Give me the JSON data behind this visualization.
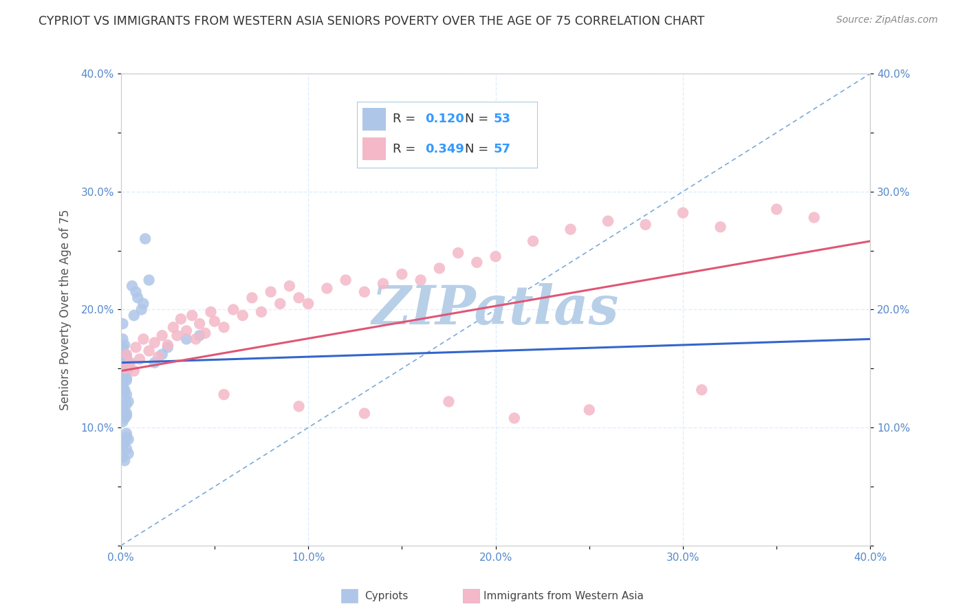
{
  "title": "CYPRIOT VS IMMIGRANTS FROM WESTERN ASIA SENIORS POVERTY OVER THE AGE OF 75 CORRELATION CHART",
  "source": "Source: ZipAtlas.com",
  "ylabel": "Seniors Poverty Over the Age of 75",
  "xlim": [
    0.0,
    0.4
  ],
  "ylim": [
    0.0,
    0.4
  ],
  "xticks": [
    0.0,
    0.05,
    0.1,
    0.15,
    0.2,
    0.25,
    0.3,
    0.35,
    0.4
  ],
  "yticks": [
    0.0,
    0.05,
    0.1,
    0.15,
    0.2,
    0.25,
    0.3,
    0.35,
    0.4
  ],
  "xticklabels": [
    "0.0%",
    "",
    "10.0%",
    "",
    "20.0%",
    "",
    "30.0%",
    "",
    "40.0%"
  ],
  "yticklabels": [
    "",
    "",
    "10.0%",
    "",
    "20.0%",
    "",
    "30.0%",
    "",
    "40.0%"
  ],
  "legend_r1_val": "0.120",
  "legend_n1_val": "53",
  "legend_r2_val": "0.349",
  "legend_n2_val": "57",
  "cypriot_color": "#aec6e8",
  "immigrant_color": "#f4b8c8",
  "line_cypriot_color": "#3366cc",
  "line_immigrant_color": "#e05575",
  "line_diagonal_color": "#7aaad8",
  "watermark_color": "#b8cfe8",
  "background_color": "#ffffff",
  "grid_color": "#ddeeff",
  "tick_color": "#5588cc",
  "legend_text_color": "#333333",
  "legend_val_color": "#3366cc",
  "legend_val2_color": "#e05575",
  "title_color": "#333333",
  "source_color": "#888888",
  "cypriot_x": [
    0.002,
    0.003,
    0.001,
    0.002,
    0.004,
    0.003,
    0.002,
    0.001,
    0.003,
    0.002,
    0.001,
    0.004,
    0.002,
    0.003,
    0.001,
    0.002,
    0.003,
    0.004,
    0.001,
    0.002,
    0.003,
    0.001,
    0.002,
    0.004,
    0.003,
    0.001,
    0.002,
    0.003,
    0.001,
    0.002,
    0.003,
    0.004,
    0.001,
    0.002,
    0.003,
    0.001,
    0.002,
    0.004,
    0.003,
    0.001,
    0.007,
    0.009,
    0.012,
    0.008,
    0.006,
    0.011,
    0.015,
    0.013,
    0.018,
    0.022,
    0.025,
    0.035,
    0.042
  ],
  "cypriot_y": [
    0.155,
    0.16,
    0.175,
    0.145,
    0.15,
    0.14,
    0.13,
    0.125,
    0.12,
    0.115,
    0.165,
    0.155,
    0.148,
    0.142,
    0.138,
    0.132,
    0.128,
    0.122,
    0.118,
    0.17,
    0.158,
    0.168,
    0.162,
    0.152,
    0.11,
    0.105,
    0.108,
    0.112,
    0.135,
    0.145,
    0.095,
    0.09,
    0.085,
    0.088,
    0.092,
    0.075,
    0.072,
    0.078,
    0.082,
    0.188,
    0.195,
    0.21,
    0.205,
    0.215,
    0.22,
    0.2,
    0.225,
    0.26,
    0.155,
    0.162,
    0.168,
    0.175,
    0.178
  ],
  "immigrant_x": [
    0.002,
    0.003,
    0.005,
    0.007,
    0.008,
    0.01,
    0.012,
    0.015,
    0.018,
    0.02,
    0.022,
    0.025,
    0.028,
    0.03,
    0.032,
    0.035,
    0.038,
    0.04,
    0.042,
    0.045,
    0.048,
    0.05,
    0.055,
    0.06,
    0.065,
    0.07,
    0.075,
    0.08,
    0.085,
    0.09,
    0.095,
    0.1,
    0.11,
    0.12,
    0.13,
    0.14,
    0.15,
    0.16,
    0.17,
    0.18,
    0.19,
    0.2,
    0.22,
    0.24,
    0.26,
    0.28,
    0.3,
    0.32,
    0.35,
    0.37,
    0.055,
    0.095,
    0.13,
    0.175,
    0.21,
    0.25,
    0.31
  ],
  "immigrant_y": [
    0.15,
    0.162,
    0.155,
    0.148,
    0.168,
    0.158,
    0.175,
    0.165,
    0.172,
    0.16,
    0.178,
    0.17,
    0.185,
    0.178,
    0.192,
    0.182,
    0.195,
    0.175,
    0.188,
    0.18,
    0.198,
    0.19,
    0.185,
    0.2,
    0.195,
    0.21,
    0.198,
    0.215,
    0.205,
    0.22,
    0.21,
    0.205,
    0.218,
    0.225,
    0.215,
    0.222,
    0.23,
    0.225,
    0.235,
    0.248,
    0.24,
    0.245,
    0.258,
    0.268,
    0.275,
    0.272,
    0.282,
    0.27,
    0.285,
    0.278,
    0.128,
    0.118,
    0.112,
    0.122,
    0.108,
    0.115,
    0.132
  ],
  "cyp_line_x": [
    0.0,
    0.4
  ],
  "cyp_line_y": [
    0.155,
    0.175
  ],
  "imm_line_x": [
    0.0,
    0.4
  ],
  "imm_line_y": [
    0.148,
    0.258
  ]
}
